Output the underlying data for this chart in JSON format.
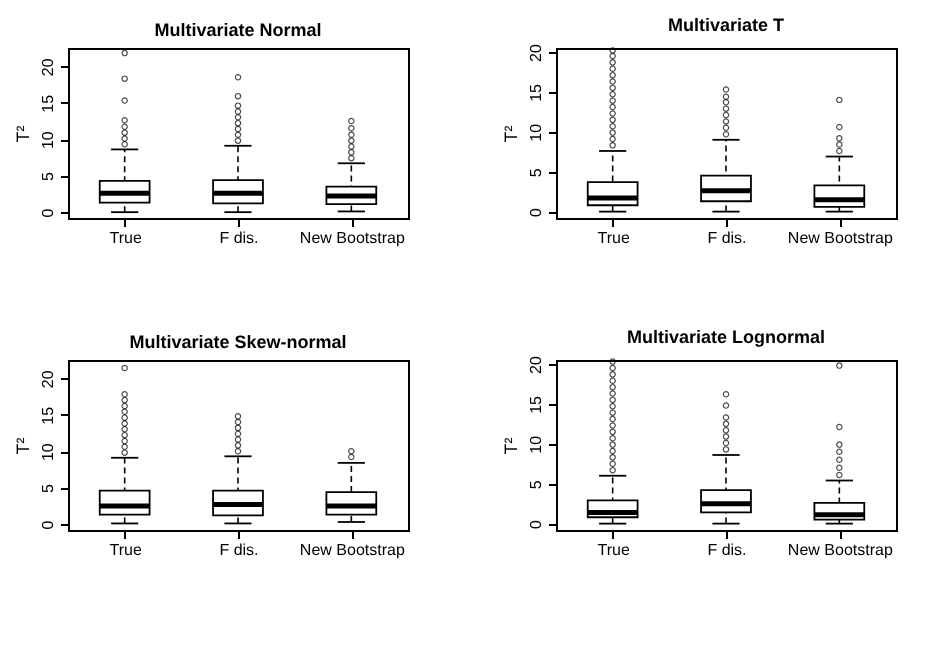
{
  "chart_data": [
    {
      "type": "box",
      "title": "Multivariate Normal",
      "ylabel": "T²",
      "categories": [
        "True",
        "F dis.",
        "New Bootstrap"
      ],
      "ylim": [
        -0.8,
        22.5
      ],
      "yticks": [
        0,
        5,
        10,
        15,
        20
      ],
      "grid": false,
      "boxes": [
        {
          "low": 0,
          "q1": 1.3,
          "median": 2.6,
          "q3": 4.3,
          "high": 8.6,
          "outliers": [
            9.3,
            10.1,
            10.9,
            11.7,
            12.6,
            15.3,
            18.3,
            21.8
          ]
        },
        {
          "low": 0,
          "q1": 1.2,
          "median": 2.6,
          "q3": 4.4,
          "high": 9.1,
          "outliers": [
            9.8,
            10.6,
            11.4,
            12.2,
            13.0,
            13.8,
            14.6,
            15.9,
            18.5
          ]
        },
        {
          "low": 0.1,
          "q1": 1.1,
          "median": 2.2,
          "q3": 3.5,
          "high": 6.7,
          "outliers": [
            7.4,
            8.2,
            9.0,
            9.8,
            10.6,
            11.5,
            12.5
          ]
        }
      ]
    },
    {
      "type": "box",
      "title": "Multivariate T",
      "ylabel": "T²",
      "categories": [
        "True",
        "F dis.",
        "New Bootstrap"
      ],
      "ylim": [
        -0.8,
        20.5
      ],
      "yticks": [
        0,
        5,
        10,
        15,
        20
      ],
      "grid": false,
      "boxes": [
        {
          "low": 0,
          "q1": 0.8,
          "median": 1.7,
          "q3": 3.7,
          "high": 7.6,
          "outliers": [
            8.3,
            9.1,
            9.9,
            10.7,
            11.5,
            12.3,
            13.1,
            13.9,
            14.7,
            15.5,
            16.3,
            17.1,
            17.9,
            18.7,
            19.5,
            20.2
          ]
        },
        {
          "low": 0,
          "q1": 1.3,
          "median": 2.6,
          "q3": 4.5,
          "high": 9.0,
          "outliers": [
            9.7,
            10.5,
            11.3,
            12.1,
            12.9,
            13.7,
            14.4,
            15.3
          ]
        },
        {
          "low": 0,
          "q1": 0.6,
          "median": 1.5,
          "q3": 3.3,
          "high": 6.9,
          "outliers": [
            7.6,
            8.4,
            9.2,
            10.6,
            14.0
          ]
        }
      ]
    },
    {
      "type": "box",
      "title": "Multivariate Skew-normal",
      "ylabel": "T²",
      "categories": [
        "True",
        "F dis.",
        "New Bootstrap"
      ],
      "ylim": [
        -0.8,
        22.5
      ],
      "yticks": [
        0,
        5,
        10,
        15,
        20
      ],
      "grid": false,
      "boxes": [
        {
          "low": 0.1,
          "q1": 1.3,
          "median": 2.5,
          "q3": 4.6,
          "high": 9.1,
          "outliers": [
            9.8,
            10.6,
            11.4,
            12.2,
            13.0,
            13.8,
            14.6,
            15.4,
            16.2,
            17.0,
            17.8,
            21.4
          ]
        },
        {
          "low": 0.1,
          "q1": 1.2,
          "median": 2.7,
          "q3": 4.6,
          "high": 9.3,
          "outliers": [
            10.0,
            10.8,
            11.6,
            12.4,
            13.2,
            14.0,
            14.8
          ]
        },
        {
          "low": 0.3,
          "q1": 1.3,
          "median": 2.5,
          "q3": 4.4,
          "high": 8.4,
          "outliers": [
            9.2,
            10.0
          ]
        }
      ]
    },
    {
      "type": "box",
      "title": "Multivariate Lognormal",
      "ylabel": "T²",
      "categories": [
        "True",
        "F dis.",
        "New Bootstrap"
      ],
      "ylim": [
        -0.8,
        20.5
      ],
      "yticks": [
        0,
        5,
        10,
        15,
        20
      ],
      "grid": false,
      "boxes": [
        {
          "low": 0,
          "q1": 0.8,
          "median": 1.4,
          "q3": 2.9,
          "high": 6.0,
          "outliers": [
            6.7,
            7.5,
            8.3,
            9.1,
            9.9,
            10.7,
            11.5,
            12.3,
            13.1,
            13.9,
            14.7,
            15.5,
            16.3,
            17.1,
            17.9,
            18.7,
            19.5,
            20.3
          ]
        },
        {
          "low": 0,
          "q1": 1.4,
          "median": 2.5,
          "q3": 4.2,
          "high": 8.6,
          "outliers": [
            9.3,
            10.1,
            10.9,
            11.7,
            12.5,
            13.3,
            14.8,
            16.2
          ]
        },
        {
          "low": 0,
          "q1": 0.5,
          "median": 1.1,
          "q3": 2.6,
          "high": 5.4,
          "outliers": [
            6.1,
            7.0,
            8.0,
            9.0,
            9.9,
            12.1,
            19.8
          ]
        }
      ]
    }
  ]
}
